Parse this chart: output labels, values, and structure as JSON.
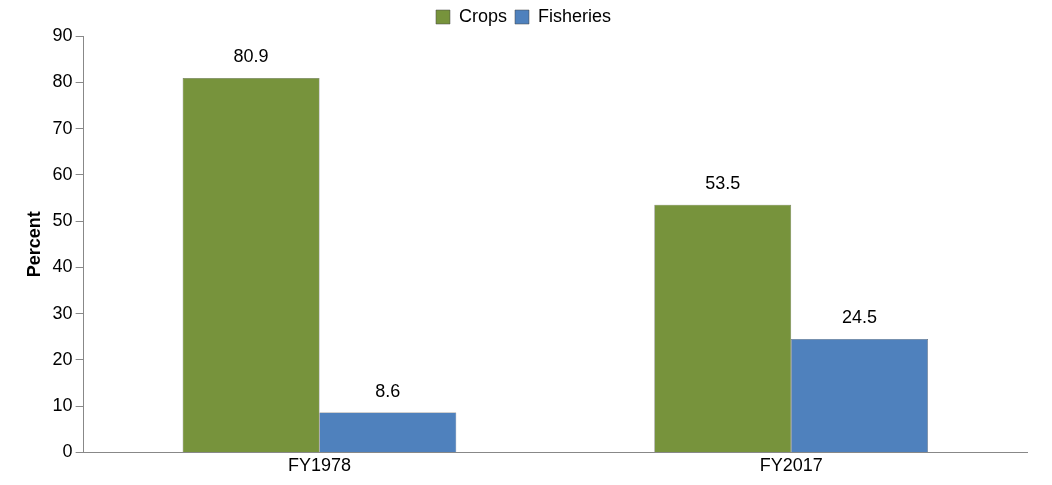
{
  "chart_data": {
    "type": "bar",
    "ylabel": "Percent",
    "categories": [
      "FY1978",
      "FY2017"
    ],
    "series": [
      {
        "name": "Crops",
        "color": "#77933c",
        "values": [
          80.9,
          53.5
        ]
      },
      {
        "name": "Fisheries",
        "color": "#4f81bd",
        "values": [
          8.6,
          24.5
        ]
      }
    ],
    "ylim": [
      0,
      90
    ],
    "yticks": [
      0,
      10,
      20,
      30,
      40,
      50,
      60,
      70,
      80,
      90
    ],
    "grid": false,
    "legend": "top",
    "data_labels": true
  }
}
